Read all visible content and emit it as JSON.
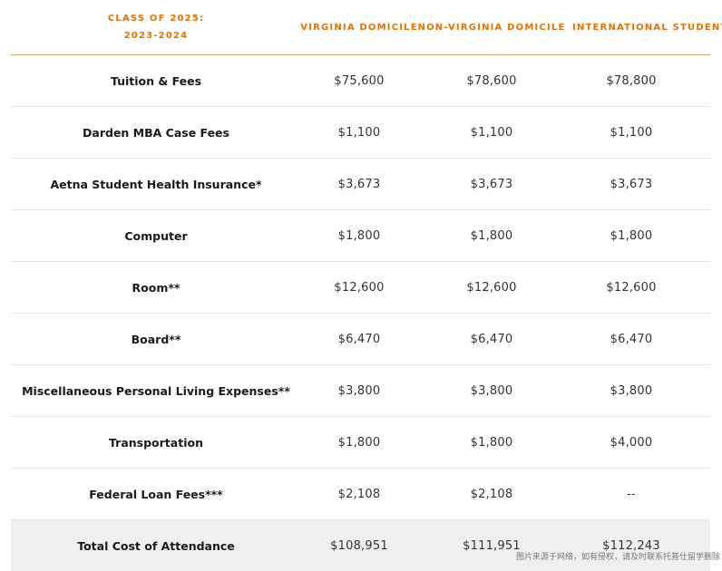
{
  "header": {
    "class_line1": "CLASS OF 2025:",
    "class_line2": "2023-2024",
    "col1": "VIRGINIA DOMICILE",
    "col2": "NON-VIRGINIA DOMICILE",
    "col3": "INTERNATIONAL STUDENTS"
  },
  "rows": [
    {
      "label": "Tuition & Fees",
      "v1": "$75,600",
      "v2": "$78,600",
      "v3": "$78,800"
    },
    {
      "label": "Darden MBA Case Fees",
      "v1": "$1,100",
      "v2": "$1,100",
      "v3": "$1,100"
    },
    {
      "label": "Aetna Student Health Insurance*",
      "v1": "$3,673",
      "v2": "$3,673",
      "v3": "$3,673"
    },
    {
      "label": "Computer",
      "v1": "$1,800",
      "v2": "$1,800",
      "v3": "$1,800"
    },
    {
      "label": "Room**",
      "v1": "$12,600",
      "v2": "$12,600",
      "v3": "$12,600"
    },
    {
      "label": "Board**",
      "v1": "$6,470",
      "v2": "$6,470",
      "v3": "$6,470"
    },
    {
      "label": "Miscellaneous Personal Living Expenses**",
      "v1": "$3,800",
      "v2": "$3,800",
      "v3": "$3,800"
    },
    {
      "label": "Transportation",
      "v1": "$1,800",
      "v2": "$1,800",
      "v3": "$4,000"
    },
    {
      "label": "Federal Loan Fees***",
      "v1": "$2,108",
      "v2": "$2,108",
      "v3": "--"
    },
    {
      "label": "Total Cost of Attendance",
      "v1": "$108,951",
      "v2": "$111,951",
      "v3": "$112,243"
    }
  ],
  "watermark": "图片来源于网络，如有侵权，请及时联系托普仕留学删除",
  "colors": {
    "accent": "#e57200",
    "rule": "#c9a96a",
    "total_bg": "#efefef"
  }
}
